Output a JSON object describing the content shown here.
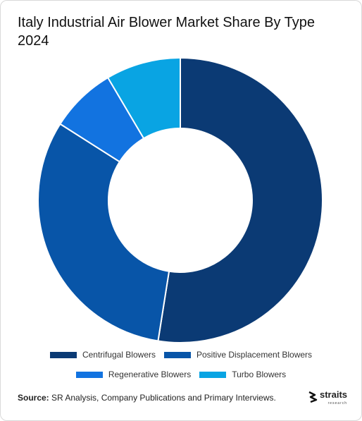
{
  "title": "Italy Industrial Air Blower Market Share By Type 2024",
  "chart_data": {
    "type": "pie",
    "donut": true,
    "categories": [
      "Centrifugal Blowers",
      "Positive Displacement Blowers",
      "Regenerative Blowers",
      "Turbo Blowers"
    ],
    "values": [
      52.5,
      31.5,
      7.5,
      8.5
    ],
    "colors": [
      "#0b3a74",
      "#0855a8",
      "#1273e0",
      "#09a4e3"
    ],
    "start_angle_deg": 0,
    "direction": "clockwise",
    "legend_position": "bottom"
  },
  "legend": {
    "row1": [
      {
        "label": "Centrifugal Blowers",
        "color": "#0b3a74"
      },
      {
        "label": "Positive Displacement Blowers",
        "color": "#0855a8"
      }
    ],
    "row2": [
      {
        "label": "Regenerative Blowers",
        "color": "#1273e0"
      },
      {
        "label": "Turbo Blowers",
        "color": "#09a4e3"
      }
    ]
  },
  "source": {
    "prefix": "Source:",
    "text": " SR Analysis, Company Publications and Primary Interviews."
  },
  "logo": {
    "word": "straits",
    "sub": "research",
    "icon": "straits-logo-icon"
  }
}
